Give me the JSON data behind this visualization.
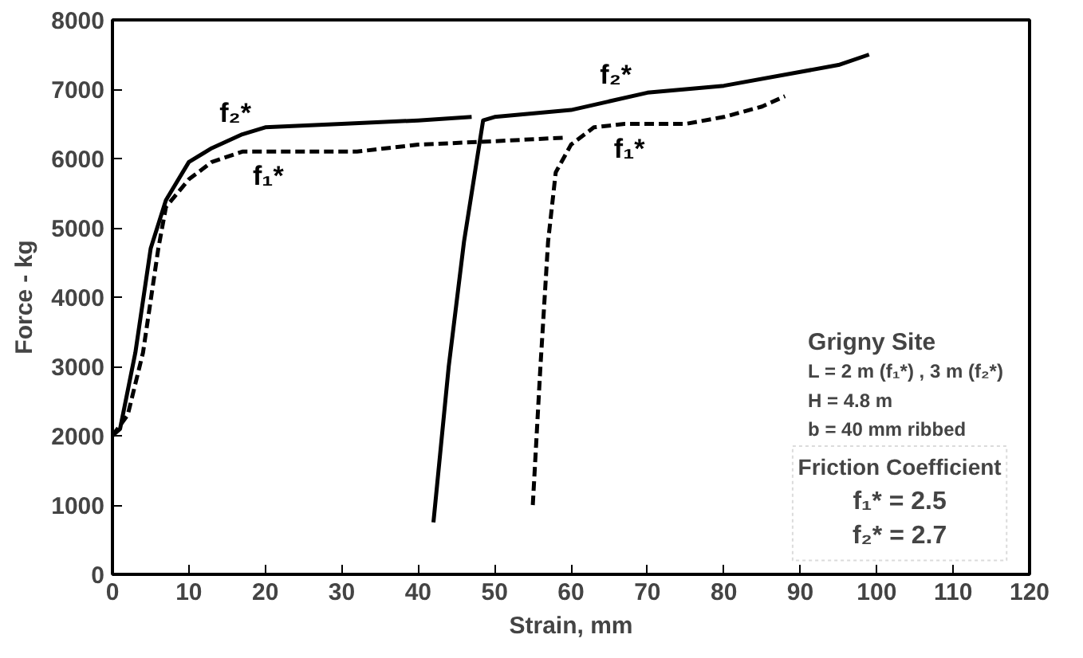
{
  "chart_data": {
    "type": "line",
    "xlabel": "Strain, mm",
    "ylabel": "Force - kg",
    "xlim": [
      0,
      120
    ],
    "ylim": [
      0,
      8000
    ],
    "xticks": [
      0,
      10,
      20,
      30,
      40,
      50,
      60,
      70,
      80,
      90,
      100,
      110,
      120
    ],
    "yticks": [
      0,
      1000,
      2000,
      3000,
      4000,
      5000,
      6000,
      7000,
      8000
    ],
    "grid": false,
    "marker": "none",
    "series": [
      {
        "name": "f₂*",
        "color": "#000000",
        "line_style": "solid",
        "x": [
          0,
          1,
          3,
          5,
          7,
          10,
          13,
          17,
          20,
          30,
          40,
          47
        ],
        "values": [
          2000,
          2100,
          3200,
          4700,
          5400,
          5950,
          6150,
          6350,
          6450,
          6500,
          6550,
          6600
        ]
      },
      {
        "name": "f₂*",
        "color": "#000000",
        "line_style": "solid",
        "x": [
          42,
          44,
          46,
          48.5,
          50,
          60,
          70,
          80,
          90,
          95,
          99
        ],
        "values": [
          750,
          3000,
          4800,
          6550,
          6600,
          6700,
          6950,
          7050,
          7250,
          7350,
          7500
        ]
      },
      {
        "name": "f₁*",
        "color": "#000000",
        "line_style": "dashed",
        "x": [
          0,
          2,
          4,
          6,
          7,
          10,
          13,
          17,
          25,
          32,
          40,
          50,
          59
        ],
        "values": [
          2000,
          2300,
          3200,
          4700,
          5300,
          5700,
          5950,
          6100,
          6100,
          6100,
          6200,
          6250,
          6300
        ]
      },
      {
        "name": "f₁*",
        "color": "#000000",
        "line_style": "dashed",
        "x": [
          55,
          56,
          57,
          58,
          60,
          63,
          67,
          75,
          80,
          85,
          88
        ],
        "values": [
          1000,
          3000,
          4800,
          5800,
          6200,
          6450,
          6500,
          6500,
          6600,
          6750,
          6900
        ]
      }
    ],
    "annotations": [
      "Grigny Site",
      "L = 2 m (f₁*) , 3 m (f₂*)",
      "H = 4.8 m",
      "b = 40 mm ribbed",
      "Friction Coefficient",
      "f₁* = 2.5",
      "f₂* = 2.7"
    ]
  }
}
